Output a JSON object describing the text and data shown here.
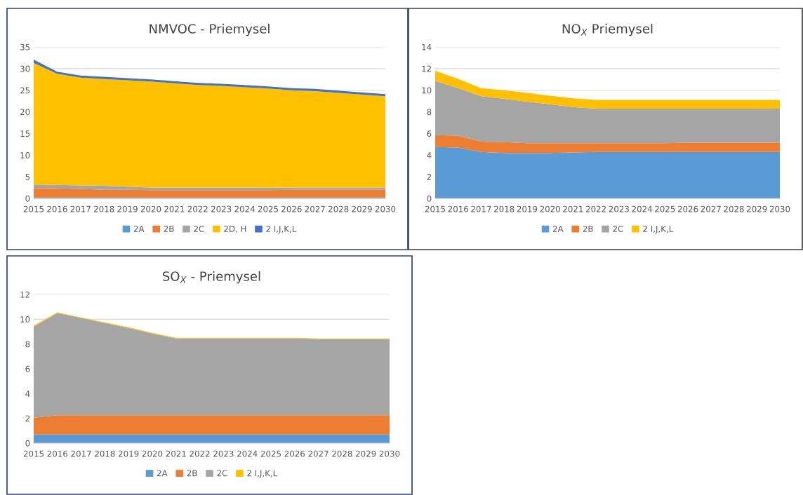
{
  "chart_data": [
    {
      "type": "area",
      "stacked": true,
      "title": "NMVOC - Priemysel",
      "categories": [
        "2015",
        "2016",
        "2017",
        "2018",
        "2019",
        "2020",
        "2021",
        "2022",
        "2023",
        "2024",
        "2025",
        "2026",
        "2027",
        "2028",
        "2029",
        "2030"
      ],
      "ylim": [
        0,
        35
      ],
      "yticks": [
        0,
        5,
        10,
        15,
        20,
        25,
        30,
        35
      ],
      "grid": "y",
      "legend": "bottom",
      "series": [
        {
          "name": "2A",
          "color": "#5b9bd5",
          "values": [
            0.2,
            0.2,
            0.2,
            0.2,
            0.2,
            0.2,
            0.2,
            0.2,
            0.2,
            0.2,
            0.2,
            0.2,
            0.2,
            0.2,
            0.2,
            0.2
          ]
        },
        {
          "name": "2B",
          "color": "#ed7d31",
          "values": [
            2.2,
            2.1,
            2.0,
            1.8,
            1.8,
            1.7,
            1.7,
            1.7,
            1.7,
            1.7,
            1.7,
            1.8,
            1.8,
            1.8,
            1.8,
            1.8
          ]
        },
        {
          "name": "2C",
          "color": "#a5a5a5",
          "values": [
            0.8,
            0.8,
            0.8,
            0.9,
            0.7,
            0.6,
            0.6,
            0.6,
            0.6,
            0.6,
            0.6,
            0.5,
            0.5,
            0.5,
            0.5,
            0.5
          ]
        },
        {
          "name": "2D, H",
          "color": "#ffc000",
          "values": [
            28.1,
            25.7,
            24.9,
            24.7,
            24.6,
            24.5,
            24.1,
            23.7,
            23.5,
            23.2,
            22.9,
            22.5,
            22.3,
            21.9,
            21.5,
            21.1
          ]
        },
        {
          "name": "2 I,J,K,L",
          "color": "#4472c4",
          "values": [
            0.8,
            0.5,
            0.5,
            0.5,
            0.5,
            0.5,
            0.5,
            0.5,
            0.5,
            0.5,
            0.5,
            0.5,
            0.5,
            0.5,
            0.5,
            0.5
          ]
        }
      ]
    },
    {
      "type": "area",
      "stacked": true,
      "title": "NO$_{X}$ Priemysel",
      "categories": [
        "2015",
        "2016",
        "2017",
        "2018",
        "2019",
        "2020",
        "2021",
        "2022",
        "2023",
        "2024",
        "2025",
        "2026",
        "2027",
        "2028",
        "2029",
        "2030"
      ],
      "ylim": [
        0,
        14
      ],
      "yticks": [
        0,
        2,
        4,
        6,
        8,
        10,
        12,
        14
      ],
      "grid": "y",
      "legend": "bottom",
      "series": [
        {
          "name": "2A",
          "color": "#5b9bd5",
          "values": [
            4.75,
            4.7,
            4.3,
            4.2,
            4.2,
            4.2,
            4.25,
            4.3,
            4.3,
            4.3,
            4.3,
            4.3,
            4.3,
            4.3,
            4.3,
            4.3
          ]
        },
        {
          "name": "2B",
          "color": "#ed7d31",
          "values": [
            1.1,
            1.1,
            0.95,
            1.0,
            0.9,
            0.9,
            0.85,
            0.8,
            0.8,
            0.8,
            0.8,
            0.85,
            0.85,
            0.85,
            0.85,
            0.85
          ]
        },
        {
          "name": "2C",
          "color": "#a5a5a5",
          "values": [
            5.0,
            4.4,
            4.2,
            4.0,
            3.85,
            3.6,
            3.35,
            3.2,
            3.2,
            3.2,
            3.2,
            3.15,
            3.15,
            3.15,
            3.15,
            3.15
          ]
        },
        {
          "name": "2 I,J,K,L",
          "color": "#ffc000",
          "values": [
            0.95,
            0.85,
            0.75,
            0.8,
            0.8,
            0.8,
            0.8,
            0.8,
            0.8,
            0.8,
            0.8,
            0.8,
            0.8,
            0.8,
            0.8,
            0.8
          ]
        }
      ]
    },
    {
      "type": "area",
      "stacked": true,
      "title": "SO$_{X}$ - Priemysel",
      "categories": [
        "2015",
        "2016",
        "2017",
        "2018",
        "2019",
        "2020",
        "2021",
        "2022",
        "2023",
        "2024",
        "2025",
        "2026",
        "2027",
        "2028",
        "2029",
        "2030"
      ],
      "ylim": [
        0,
        12
      ],
      "yticks": [
        0,
        2,
        4,
        6,
        8,
        10,
        12
      ],
      "grid": "y",
      "legend": "bottom",
      "series": [
        {
          "name": "2A",
          "color": "#5b9bd5",
          "values": [
            0.7,
            0.7,
            0.7,
            0.7,
            0.7,
            0.7,
            0.7,
            0.7,
            0.7,
            0.7,
            0.7,
            0.7,
            0.7,
            0.7,
            0.7,
            0.7
          ]
        },
        {
          "name": "2B",
          "color": "#ed7d31",
          "values": [
            1.35,
            1.55,
            1.55,
            1.55,
            1.55,
            1.55,
            1.55,
            1.55,
            1.55,
            1.55,
            1.55,
            1.55,
            1.55,
            1.55,
            1.55,
            1.55
          ]
        },
        {
          "name": "2C",
          "color": "#a5a5a5",
          "values": [
            7.35,
            8.25,
            7.85,
            7.45,
            7.05,
            6.6,
            6.2,
            6.2,
            6.2,
            6.2,
            6.2,
            6.2,
            6.15,
            6.15,
            6.15,
            6.15
          ]
        },
        {
          "name": "2 I,J,K,L",
          "color": "#ffc000",
          "values": [
            0.1,
            0.05,
            0.05,
            0.05,
            0.05,
            0.05,
            0.05,
            0.05,
            0.05,
            0.05,
            0.05,
            0.05,
            0.05,
            0.05,
            0.05,
            0.05
          ]
        }
      ]
    }
  ]
}
